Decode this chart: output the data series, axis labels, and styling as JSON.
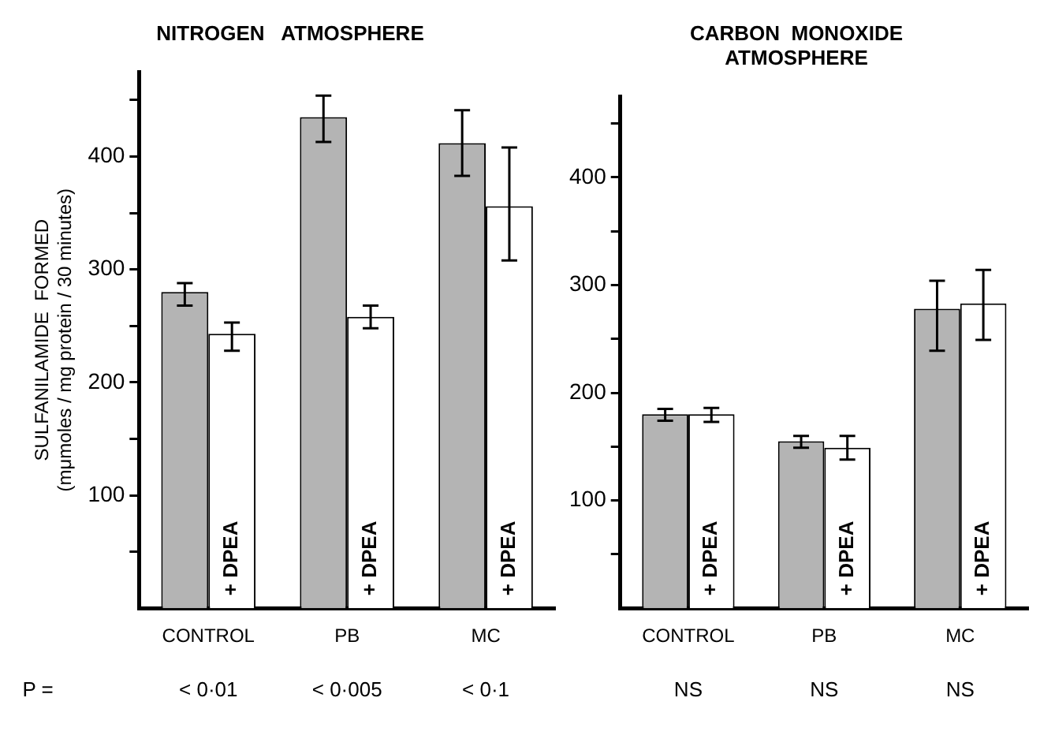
{
  "chart_data": [
    {
      "type": "bar",
      "title": "NITROGEN   ATMOSPHERE",
      "ylabel": "SULFANILAMIDE  FORMED\n(mμmoles / mg protein / 30 minutes)",
      "categories": [
        "CONTROL",
        "PB",
        "MC"
      ],
      "series": [
        {
          "color": "#b4b4b4",
          "values": [
            280,
            435,
            412
          ],
          "errors": [
            [
              268,
              288
            ],
            [
              413,
              454
            ],
            [
              383,
              441
            ]
          ]
        },
        {
          "name": "+ DPEA",
          "color": "#ffffff",
          "values": [
            243,
            258,
            356
          ],
          "errors": [
            [
              228,
              253
            ],
            [
              248,
              268
            ],
            [
              308,
              408
            ]
          ]
        }
      ],
      "ylim": [
        0,
        475
      ],
      "yticks": [
        {
          "value": 50,
          "label": null
        },
        100,
        {
          "value": 150,
          "label": null
        },
        200,
        {
          "value": 250,
          "label": null
        },
        300,
        {
          "value": 350,
          "label": null
        },
        400,
        {
          "value": 450,
          "label": null
        }
      ],
      "annotations": [
        "P =",
        "< 0·01",
        "< 0·005",
        "< 0·1"
      ],
      "grid": false,
      "legend": false
    },
    {
      "type": "bar",
      "title": "CARBON  MONOXIDE ATMOSPHERE",
      "categories": [
        "CONTROL",
        "PB",
        "MC"
      ],
      "series": [
        {
          "color": "#b4b4b4",
          "values": [
            180,
            155,
            278
          ],
          "errors": [
            [
              174,
              185
            ],
            [
              149,
              160
            ],
            [
              239,
              304
            ]
          ]
        },
        {
          "name": "+ DPEA",
          "color": "#ffffff",
          "values": [
            180,
            149,
            283
          ],
          "errors": [
            [
              173,
              186
            ],
            [
              138,
              160
            ],
            [
              249,
              314
            ]
          ]
        }
      ],
      "ylim": [
        0,
        475
      ],
      "yticks": [
        {
          "value": 50,
          "label": null
        },
        100,
        {
          "value": 150,
          "label": null
        },
        200,
        {
          "value": 250,
          "label": null
        },
        300,
        {
          "value": 350,
          "label": null
        },
        400,
        {
          "value": 450,
          "label": null
        }
      ],
      "annotations": [
        "NS",
        "NS",
        "NS"
      ],
      "grid": false,
      "legend": false
    }
  ]
}
